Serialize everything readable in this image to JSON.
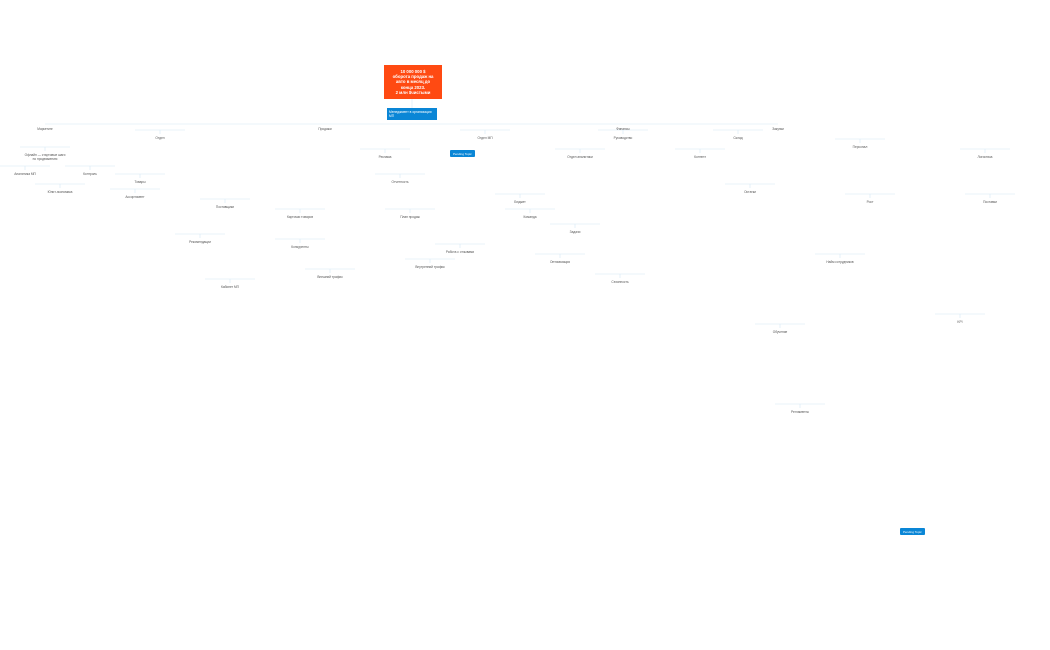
{
  "root": {
    "title": "10 000 000 $\nоборота продаж на\nавто в месяц до\nконца 2023.\n2 млн $чистыми"
  },
  "subroot": {
    "title": "Менеджмент в организации МП"
  },
  "pending": [
    "Pending Topic",
    "Pending Topic"
  ],
  "nodes": [
    "Маркетинг",
    "Продажи",
    "Финансы",
    "Закупки",
    "Отдел",
    "Отдел МП",
    "Руководство",
    "Склад",
    "Офлайн — стартовые шаги\nпо продвижению",
    "Отдел аналитики",
    "Персонал",
    "Логистика",
    "Аналитика МП",
    "Контроль",
    "Товары",
    "Реклама",
    "Контент",
    "Юнит-экономика",
    "Ассортимент",
    "Поставщики",
    "Карточки товаров",
    "Отчетность",
    "Бюджет",
    "Задачи",
    "Рост",
    "Рекомендации",
    "Конкуренты",
    "План продаж",
    "Команда",
    "Работа с отзывами",
    "Оптимизация",
    "Остатки",
    "Поставки",
    "Кабинет МП",
    "Внешний трафик",
    "Внутренний трафик",
    "Сезонность",
    "Найм сотрудников",
    "Обучение",
    "Регламенты",
    "KPI"
  ]
}
